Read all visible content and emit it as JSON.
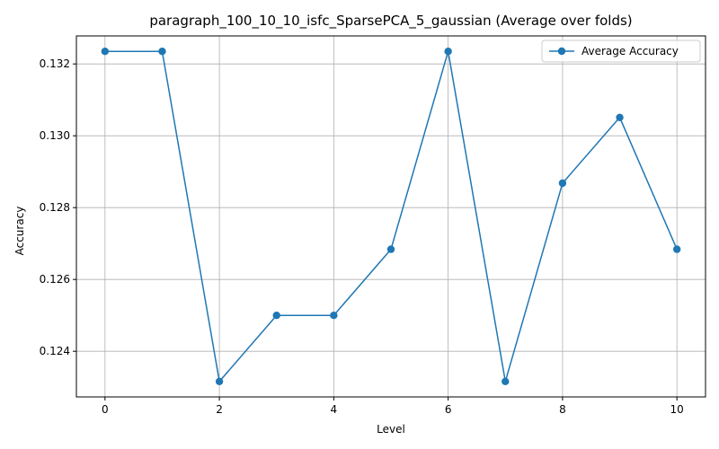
{
  "chart_data": {
    "type": "line",
    "title": "paragraph_100_10_10_isfc_SparsePCA_5_gaussian (Average over folds)",
    "xlabel": "Level",
    "ylabel": "Accuracy",
    "xlim": [
      -0.5,
      10.5
    ],
    "ylim": [
      0.12273,
      0.13278
    ],
    "xticks": [
      0,
      2,
      4,
      6,
      8,
      10
    ],
    "xtick_labels": [
      "0",
      "2",
      "4",
      "6",
      "8",
      "10"
    ],
    "yticks": [
      0.124,
      0.126,
      0.128,
      0.13,
      0.132
    ],
    "ytick_labels": [
      "0.124",
      "0.126",
      "0.128",
      "0.130",
      "0.132"
    ],
    "grid": true,
    "legend_position": "top-right",
    "series": [
      {
        "name": "Average Accuracy",
        "color": "#1f77b4",
        "marker": "circle",
        "x": [
          0,
          1,
          2,
          3,
          4,
          5,
          6,
          7,
          8,
          9,
          10
        ],
        "y": [
          0.13235,
          0.13235,
          0.12316,
          0.125,
          0.125,
          0.12684,
          0.13235,
          0.12316,
          0.12868,
          0.13051,
          0.12684
        ]
      }
    ]
  }
}
